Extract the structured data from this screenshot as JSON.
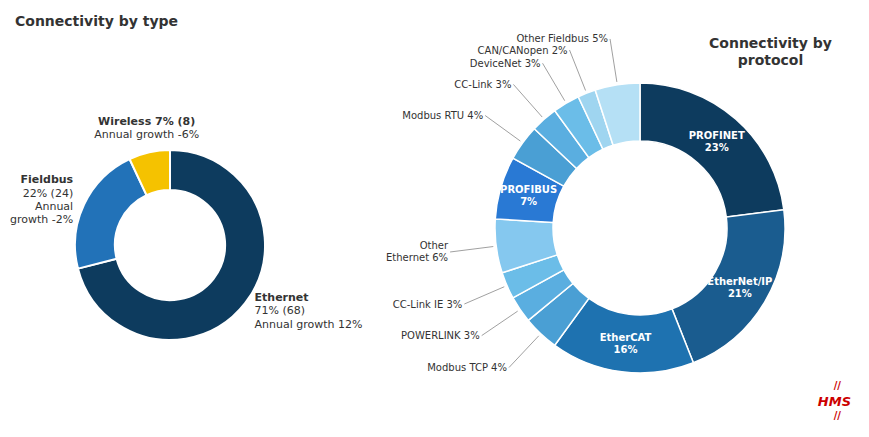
{
  "chart_data": [
    {
      "type": "pie",
      "title": "Connectivity by type",
      "values": [
        71,
        22,
        7
      ],
      "colors": [
        "#0d3b5e",
        "#2272b8",
        "#f5c200"
      ],
      "annotations": [
        {
          "text": "Ethernet\n71% (68)\nAnnual growth 12%"
        },
        {
          "text": "Fieldbus\n22% (24)\nAnnual\ngrowth -2%"
        },
        {
          "text": "Wireless 7% (8)\nAnnual growth -6%"
        }
      ]
    },
    {
      "type": "pie",
      "title": "Connectivity by\nprotocol",
      "values": [
        23,
        21,
        16,
        4,
        3,
        3,
        6,
        7,
        4,
        3,
        3,
        2,
        5
      ],
      "colors": [
        "#0d3b5e",
        "#1a5c8f",
        "#1e72b0",
        "#4a9fd4",
        "#5aaee0",
        "#6bbde8",
        "#85c8ef",
        "#2979d4",
        "#4a9fd4",
        "#5aaee0",
        "#6bbde8",
        "#9fd5f0",
        "#b5e0f5"
      ],
      "data_labels": true,
      "value_labels": [
        "PROFINET\n23%",
        "EtherNet/IP\n21%",
        "EtherCAT\n16%",
        "Modbus TCP 4%",
        "POWERLINK 3%",
        "CC-Link IE 3%",
        "Other\nEthernet 6%",
        "PROFIBUS\n7%",
        "Modbus RTU 4%",
        "CC-Link 3%",
        "DeviceNet 3%",
        "CAN/CANopen 2%",
        "Other Fieldbus 5%"
      ],
      "annotations": [
        {
          "text": "//",
          "color": "#cc0000"
        },
        {
          "text": "HMS",
          "color": "#cc0000"
        },
        {
          "text": "//",
          "color": "#cc0000"
        }
      ]
    }
  ]
}
